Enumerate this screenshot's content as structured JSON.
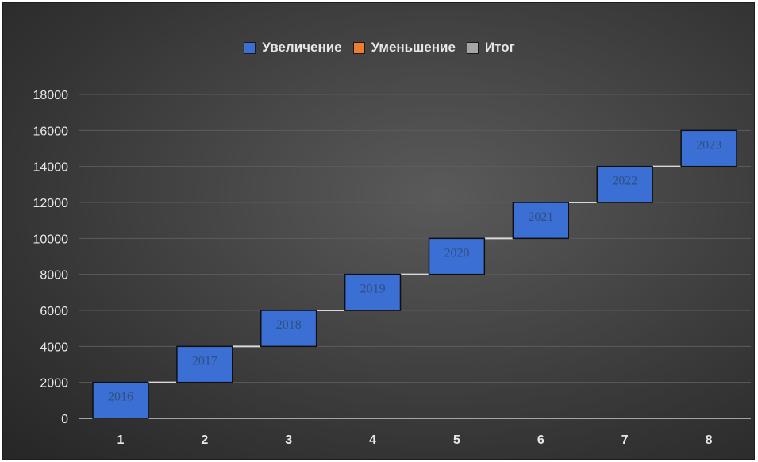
{
  "legend": {
    "items": [
      {
        "label": "Увеличение",
        "color": "#3b6fd4"
      },
      {
        "label": "Уменьшение",
        "color": "#ed7d31"
      },
      {
        "label": "Итог",
        "color": "#a5a5a5"
      }
    ]
  },
  "chart_data": {
    "type": "waterfall",
    "categories": [
      "1",
      "2",
      "3",
      "4",
      "5",
      "6",
      "7",
      "8"
    ],
    "series": [
      {
        "name": "Увеличение",
        "color": "#3b6fd4",
        "start": [
          0,
          2000,
          4000,
          6000,
          8000,
          10000,
          12000,
          14000
        ],
        "values": [
          2000,
          2000,
          2000,
          2000,
          2000,
          2000,
          2000,
          2000
        ]
      }
    ],
    "data_labels": [
      "2016",
      "2017",
      "2018",
      "2019",
      "2020",
      "2021",
      "2022",
      "2023"
    ],
    "ylim": [
      0,
      18000
    ],
    "yticks": [
      "0",
      "2000",
      "4000",
      "6000",
      "8000",
      "10000",
      "12000",
      "14000",
      "16000",
      "18000"
    ],
    "grid": true,
    "legend_position": "top",
    "connectors": true
  }
}
